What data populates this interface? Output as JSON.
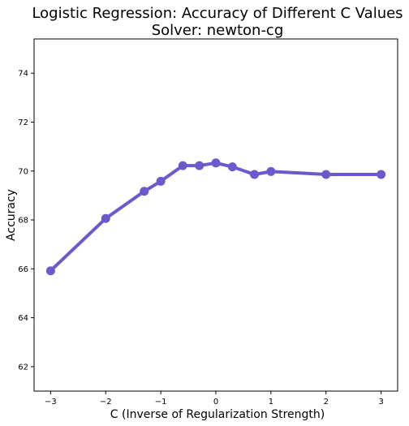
{
  "chart_data": {
    "type": "line",
    "title": "Logistic Regression: Accuracy of Different C Values",
    "subtitle": "Solver: newton-cg",
    "xlabel": "C (Inverse of Regularization Strength)",
    "ylabel": "Accuracy",
    "xlim": [
      -3.3,
      3.3
    ],
    "ylim": [
      61.0,
      75.4
    ],
    "xticks": [
      -3,
      -2,
      -1,
      0,
      1,
      2,
      3
    ],
    "xtick_labels": [
      "−3",
      "−2",
      "−1",
      "0",
      "1",
      "2",
      "3"
    ],
    "yticks": [
      62,
      64,
      66,
      68,
      70,
      72,
      74
    ],
    "ytick_labels": [
      "62",
      "64",
      "66",
      "68",
      "70",
      "72",
      "74"
    ],
    "grid": false,
    "series": [
      {
        "color": "#6a5acd",
        "x": [
          -3,
          -2,
          -1.3,
          -1,
          -0.6,
          -0.3,
          0,
          0.3,
          0.7,
          1,
          2,
          3
        ],
        "y": [
          65.92,
          68.06,
          69.17,
          69.58,
          70.22,
          70.22,
          70.33,
          70.17,
          69.86,
          69.98,
          69.86,
          69.86
        ]
      }
    ]
  }
}
